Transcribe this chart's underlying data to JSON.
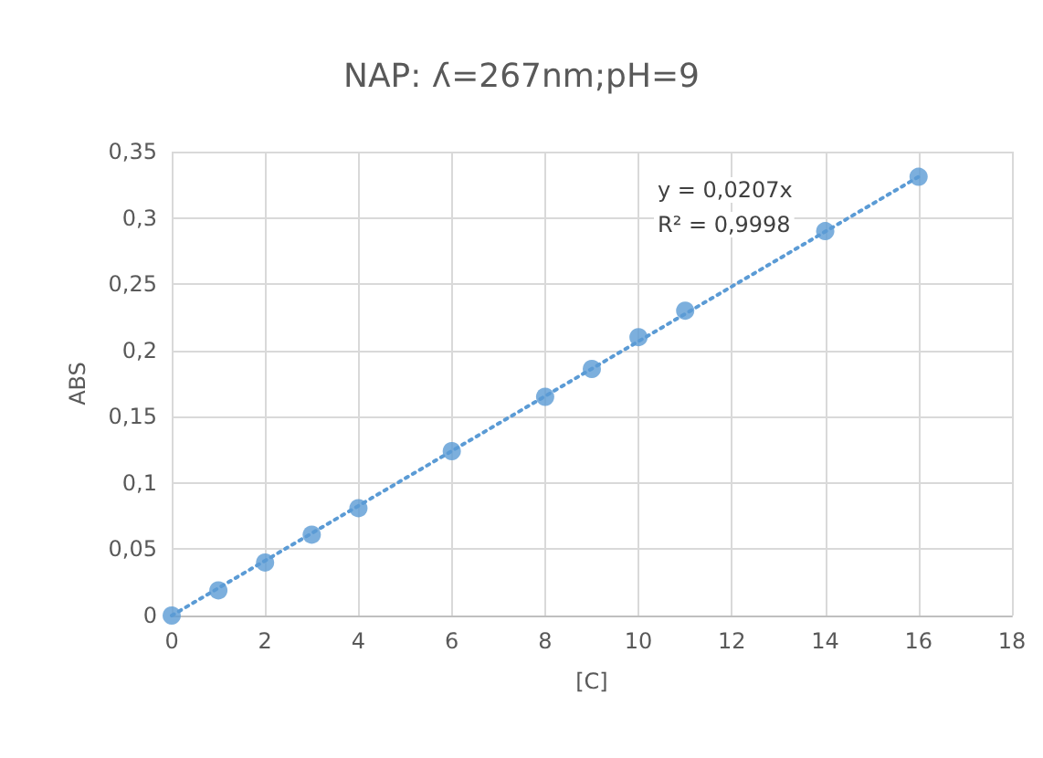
{
  "chart_data": {
    "type": "scatter",
    "title": "NAP: ʎ=267nm;pH=9",
    "xlabel": "[C]",
    "ylabel": "ABS",
    "annotations": [
      "y = 0,0207x",
      "R² = 0,9998"
    ],
    "series": [
      {
        "color": "#5b9bd5",
        "marker": "circle",
        "x": [
          0,
          1,
          2,
          3,
          4,
          6,
          8,
          9,
          10,
          11,
          14,
          16
        ],
        "values": [
          0,
          0.019,
          0.04,
          0.061,
          0.081,
          0.124,
          0.165,
          0.186,
          0.21,
          0.23,
          0.29,
          0.331
        ]
      },
      {
        "type": "line",
        "color": "#5b9bd5",
        "line_style": "dotted",
        "marker": "none",
        "x": [
          0,
          16
        ],
        "values": [
          0,
          0.331
        ]
      }
    ],
    "xlim": [
      0,
      18
    ],
    "xticks": [
      0,
      2,
      4,
      6,
      8,
      10,
      12,
      14,
      16,
      18
    ],
    "ylim": [
      0,
      0.35
    ],
    "yticks": [
      0,
      {
        "value": 0.05,
        "label": "0,05"
      },
      {
        "value": 0.1,
        "label": "0,1"
      },
      {
        "value": 0.15,
        "label": "0,15"
      },
      {
        "value": 0.2,
        "label": "0,2"
      },
      {
        "value": 0.25,
        "label": "0,25"
      },
      {
        "value": 0.3,
        "label": "0,3"
      },
      {
        "value": 0.35,
        "label": "0,35"
      }
    ],
    "grid": true
  }
}
